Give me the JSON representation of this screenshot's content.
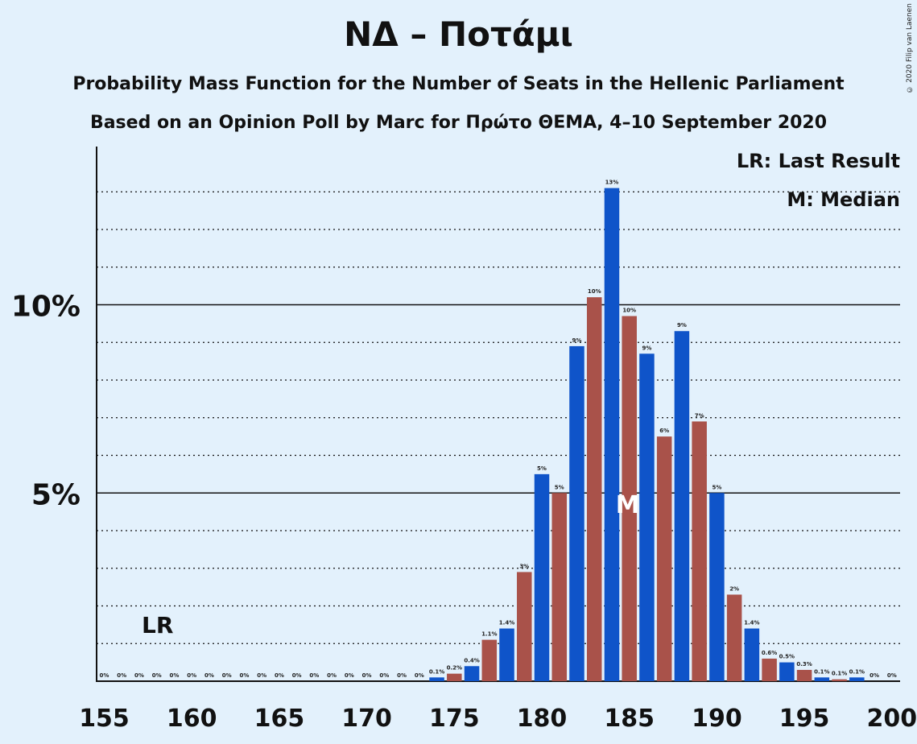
{
  "header": {
    "title": "ΝΔ – Ποτάμι",
    "subtitle1": "Probability Mass Function for the Number of Seats in the Hellenic Parliament",
    "subtitle2": "Based on an Opinion Poll by Marc for Πρώτο ΘΕΜΑ, 4–10 September 2020",
    "copyright": "© 2020 Filip van Laenen"
  },
  "legend": {
    "lr": "LR: Last Result",
    "median": "M: Median"
  },
  "colors": {
    "background": "#e3f1fc",
    "blue": "#0f54c9",
    "red": "#a9524a"
  },
  "chart_data": {
    "type": "bar",
    "x": [
      155,
      156,
      157,
      158,
      159,
      160,
      161,
      162,
      163,
      164,
      165,
      166,
      167,
      168,
      169,
      170,
      171,
      172,
      173,
      174,
      175,
      176,
      177,
      178,
      179,
      180,
      181,
      182,
      183,
      184,
      185,
      186,
      187,
      188,
      189,
      190,
      191,
      192,
      193,
      194,
      195,
      196,
      197,
      198,
      199,
      200
    ],
    "values": [
      0,
      0,
      0,
      0,
      0,
      0,
      0,
      0,
      0,
      0,
      0,
      0,
      0,
      0,
      0,
      0,
      0,
      0,
      0,
      0.1,
      0.2,
      0.4,
      1.1,
      1.4,
      2.9,
      5.5,
      5.0,
      8.9,
      10.2,
      13.1,
      9.7,
      8.7,
      6.5,
      9.3,
      6.9,
      5.0,
      2.3,
      1.4,
      0.6,
      0.5,
      0.3,
      0.1,
      0.05,
      0.1,
      0,
      0
    ],
    "labels": [
      "0%",
      "0%",
      "0%",
      "0%",
      "0%",
      "0%",
      "0%",
      "0%",
      "0%",
      "0%",
      "0%",
      "0%",
      "0%",
      "0%",
      "0%",
      "0%",
      "0%",
      "0%",
      "0%",
      "0.1%",
      "0.2%",
      "0.4%",
      "1.1%",
      "1.4%",
      "3%",
      "5%",
      "5%",
      "9%",
      "10%",
      "13%",
      "10%",
      "9%",
      "6%",
      "9%",
      "7%",
      "5%",
      "2%",
      "1.4%",
      "0.6%",
      "0.5%",
      "0.3%",
      "0.1%",
      "0.1%",
      "0.1%",
      "0%",
      "0%"
    ],
    "y_ticks": [
      {
        "value": 5,
        "label": "5%"
      },
      {
        "value": 10,
        "label": "10%"
      }
    ],
    "x_ticks": [
      155,
      160,
      165,
      170,
      175,
      180,
      185,
      190,
      195,
      200
    ],
    "ylim": [
      0,
      14
    ],
    "last_result": {
      "x": 158,
      "label": "LR"
    },
    "median": {
      "x": 185,
      "label": "M"
    },
    "grid": "dotted every 1%"
  }
}
